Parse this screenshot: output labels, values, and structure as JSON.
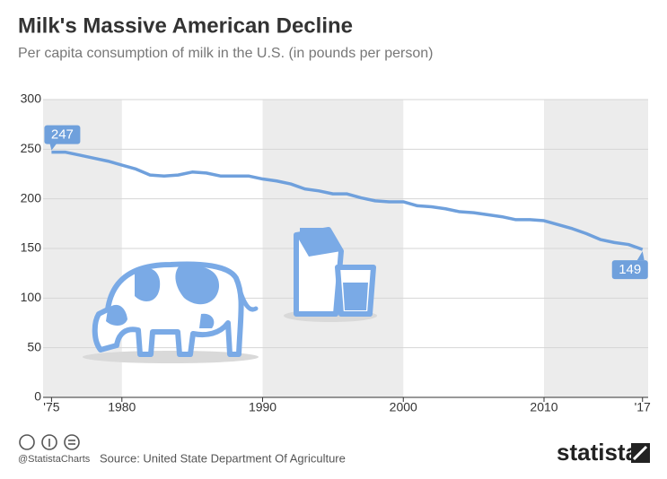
{
  "chart_data": {
    "type": "line",
    "title": "Milk's Massive American Decline",
    "subtitle": "Per capita consumption of milk in the U.S. (in pounds per person)",
    "x": [
      1975,
      1976,
      1977,
      1978,
      1979,
      1980,
      1981,
      1982,
      1983,
      1984,
      1985,
      1986,
      1987,
      1988,
      1989,
      1990,
      1991,
      1992,
      1993,
      1994,
      1995,
      1996,
      1997,
      1998,
      1999,
      2000,
      2001,
      2002,
      2003,
      2004,
      2005,
      2006,
      2007,
      2008,
      2009,
      2010,
      2011,
      2012,
      2013,
      2014,
      2015,
      2016,
      2017
    ],
    "series": [
      {
        "name": "Milk",
        "color": "#6fa0dc",
        "values": [
          247,
          247,
          244,
          241,
          238,
          234,
          230,
          224,
          223,
          224,
          227,
          226,
          223,
          223,
          223,
          220,
          218,
          215,
          210,
          208,
          205,
          205,
          201,
          198,
          197,
          197,
          193,
          192,
          190,
          187,
          186,
          184,
          182,
          179,
          179,
          178,
          174,
          170,
          165,
          159,
          156,
          154,
          149
        ]
      }
    ],
    "xlim": [
      1974.4,
      2017.4
    ],
    "xticks": [
      {
        "value": 1975,
        "label": "'75"
      },
      1980,
      1990,
      2000,
      2010,
      {
        "value": 2017,
        "label": "'17"
      }
    ],
    "ylim": [
      0,
      300
    ],
    "yticks": [
      0,
      50,
      100,
      150,
      200,
      250,
      300
    ],
    "grid": true
  },
  "footer": {
    "handle": "@StatistaCharts",
    "source": "Source: United State Department Of Agriculture",
    "brand": "statista"
  }
}
